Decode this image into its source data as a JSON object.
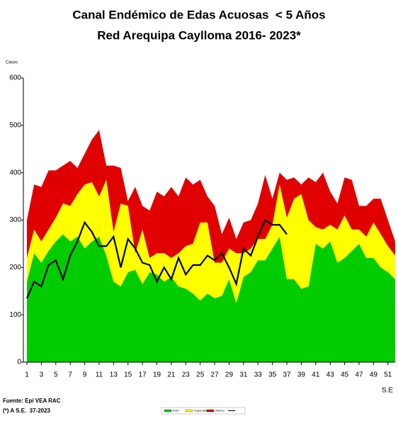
{
  "chart_data": {
    "type": "stacked_area",
    "title": "Canal Endémico de Edas Acuosas  < 5 Años",
    "subtitle": "Red Arequipa Caylloma 2016- 2023*",
    "y_label": "Casos",
    "x_label": "S.E",
    "source": "Fuente: Epi VEA RAC",
    "note": "(*) A S.E.  37-2023",
    "x": [
      1,
      2,
      3,
      4,
      5,
      6,
      7,
      8,
      9,
      10,
      11,
      12,
      13,
      14,
      15,
      16,
      17,
      18,
      19,
      20,
      21,
      22,
      23,
      24,
      25,
      26,
      27,
      28,
      29,
      30,
      31,
      32,
      33,
      34,
      35,
      36,
      37,
      38,
      39,
      40,
      41,
      42,
      43,
      44,
      45,
      46,
      47,
      48,
      49,
      50,
      51,
      52
    ],
    "xlim": [
      1,
      52
    ],
    "xticks": [
      1,
      3,
      5,
      7,
      9,
      11,
      13,
      15,
      17,
      19,
      21,
      23,
      25,
      27,
      29,
      31,
      33,
      35,
      37,
      39,
      41,
      43,
      45,
      47,
      49,
      51
    ],
    "ylim": [
      0,
      600
    ],
    "yticks": [
      0,
      100,
      200,
      300,
      400,
      500,
      600
    ],
    "series": [
      {
        "name": "Éxito",
        "kind": "area",
        "color": "#00cc00",
        "values": [
          170,
          230,
          210,
          235,
          255,
          270,
          255,
          265,
          240,
          255,
          265,
          225,
          170,
          160,
          190,
          195,
          165,
          190,
          185,
          170,
          180,
          160,
          155,
          145,
          130,
          145,
          135,
          140,
          175,
          125,
          180,
          190,
          215,
          215,
          240,
          265,
          175,
          175,
          155,
          160,
          250,
          240,
          255,
          210,
          220,
          235,
          250,
          220,
          220,
          200,
          190,
          175
        ]
      },
      {
        "name": "Seguridad",
        "kind": "area",
        "color": "#ffff00",
        "values": [
          50,
          50,
          45,
          45,
          50,
          65,
          75,
          90,
          135,
          125,
          85,
          160,
          105,
          175,
          140,
          35,
          115,
          30,
          45,
          60,
          40,
          70,
          90,
          105,
          165,
          150,
          75,
          70,
          65,
          105,
          50,
          50,
          45,
          45,
          50,
          110,
          130,
          170,
          200,
          140,
          35,
          40,
          35,
          70,
          90,
          45,
          30,
          45,
          75,
          70,
          55,
          50
        ]
      },
      {
        "name": "Alarma",
        "kind": "area",
        "color": "#e00000",
        "values": [
          80,
          95,
          115,
          125,
          100,
          80,
          95,
          55,
          65,
          90,
          140,
          30,
          140,
          75,
          10,
          140,
          50,
          100,
          130,
          120,
          150,
          120,
          145,
          125,
          90,
          55,
          120,
          60,
          65,
          30,
          65,
          60,
          75,
          135,
          55,
          25,
          80,
          45,
          20,
          90,
          95,
          120,
          70,
          55,
          80,
          105,
          50,
          65,
          50,
          75,
          55,
          30
        ]
      },
      {
        "kind": "line",
        "color": "#000000",
        "values": [
          135,
          170,
          160,
          205,
          215,
          175,
          225,
          255,
          295,
          275,
          245,
          245,
          265,
          200,
          260,
          240,
          210,
          205,
          170,
          200,
          175,
          220,
          185,
          205,
          205,
          225,
          215,
          230,
          200,
          165,
          240,
          225,
          265,
          300,
          290,
          290,
          270,
          null,
          null,
          null,
          null,
          null,
          null,
          null,
          null,
          null,
          null,
          null,
          null,
          null,
          null,
          null
        ]
      }
    ]
  }
}
